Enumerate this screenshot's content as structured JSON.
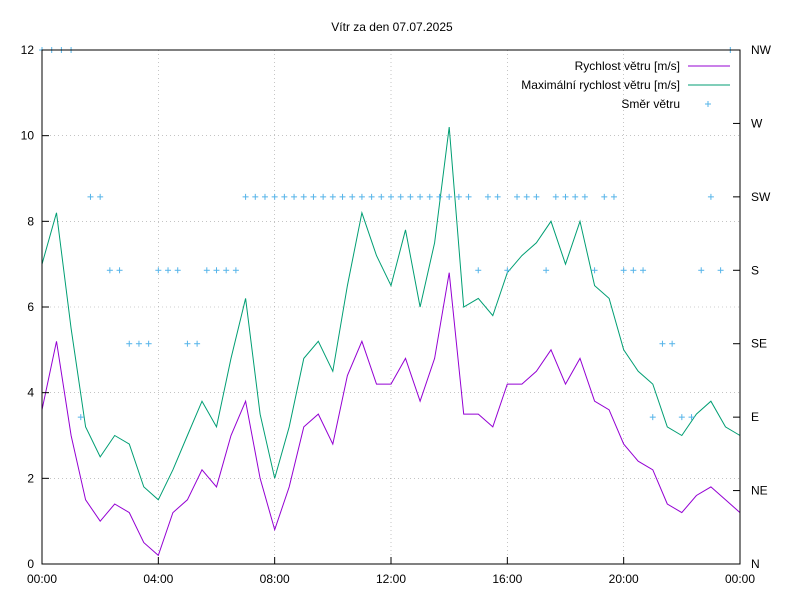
{
  "chart_data": {
    "type": "line",
    "title": "Vítr za den 07.07.2025",
    "xlabel": "",
    "ylabel": "",
    "xlim": [
      "00:00",
      "24:00"
    ],
    "ylim": [
      0,
      12
    ],
    "x_ticks": [
      "00:00",
      "04:00",
      "08:00",
      "12:00",
      "16:00",
      "20:00",
      "00:00"
    ],
    "y_ticks": [
      0,
      2,
      4,
      6,
      8,
      10,
      12
    ],
    "y2_ticks": [
      "N",
      "NE",
      "E",
      "SE",
      "S",
      "SW",
      "W",
      "NW"
    ],
    "grid": true,
    "legend_position": "top-right",
    "series": [
      {
        "name": "Rychlost větru [m/s]",
        "style": "line",
        "color": "#9400d3",
        "x": [
          "00:00",
          "00:30",
          "01:00",
          "01:30",
          "02:00",
          "02:30",
          "03:00",
          "03:30",
          "04:00",
          "04:30",
          "05:00",
          "05:30",
          "06:00",
          "06:30",
          "07:00",
          "07:30",
          "08:00",
          "08:30",
          "09:00",
          "09:30",
          "10:00",
          "10:30",
          "11:00",
          "11:30",
          "12:00",
          "12:30",
          "13:00",
          "13:30",
          "14:00",
          "14:30",
          "15:00",
          "15:30",
          "16:00",
          "16:30",
          "17:00",
          "17:30",
          "18:00",
          "18:30",
          "19:00",
          "19:30",
          "20:00",
          "20:30",
          "21:00",
          "21:30",
          "22:00",
          "22:30",
          "23:00",
          "23:30",
          "24:00"
        ],
        "values": [
          3.6,
          5.2,
          3.0,
          1.5,
          1.0,
          1.4,
          1.2,
          0.5,
          0.2,
          1.2,
          1.5,
          2.2,
          1.8,
          3.0,
          3.8,
          2.0,
          0.8,
          1.8,
          3.2,
          3.5,
          2.8,
          4.4,
          5.2,
          4.2,
          4.2,
          4.8,
          3.8,
          4.8,
          6.8,
          3.5,
          3.5,
          3.2,
          4.2,
          4.2,
          4.5,
          5.0,
          4.2,
          4.8,
          3.8,
          3.6,
          2.8,
          2.4,
          2.2,
          1.4,
          1.2,
          1.6,
          1.8,
          1.5,
          1.2
        ]
      },
      {
        "name": "Maximální rychlost větru [m/s]",
        "style": "line",
        "color": "#009e73",
        "x": [
          "00:00",
          "00:30",
          "01:00",
          "01:30",
          "02:00",
          "02:30",
          "03:00",
          "03:30",
          "04:00",
          "04:30",
          "05:00",
          "05:30",
          "06:00",
          "06:30",
          "07:00",
          "07:30",
          "08:00",
          "08:30",
          "09:00",
          "09:30",
          "10:00",
          "10:30",
          "11:00",
          "11:30",
          "12:00",
          "12:30",
          "13:00",
          "13:30",
          "14:00",
          "14:30",
          "15:00",
          "15:30",
          "16:00",
          "16:30",
          "17:00",
          "17:30",
          "18:00",
          "18:30",
          "19:00",
          "19:30",
          "20:00",
          "20:30",
          "21:00",
          "21:30",
          "22:00",
          "22:30",
          "23:00",
          "23:30",
          "24:00"
        ],
        "values": [
          7.0,
          8.2,
          5.5,
          3.2,
          2.5,
          3.0,
          2.8,
          1.8,
          1.5,
          2.2,
          3.0,
          3.8,
          3.2,
          4.8,
          6.2,
          3.5,
          2.0,
          3.2,
          4.8,
          5.2,
          4.5,
          6.5,
          8.2,
          7.2,
          6.5,
          7.8,
          6.0,
          7.5,
          10.2,
          6.0,
          6.2,
          5.8,
          6.8,
          7.2,
          7.5,
          8.0,
          7.0,
          8.0,
          6.5,
          6.2,
          5.0,
          4.5,
          4.2,
          3.2,
          3.0,
          3.5,
          3.8,
          3.2,
          3.0
        ]
      },
      {
        "name": "Směr větru",
        "style": "points",
        "color": "#56b4e9",
        "x": [
          "00:00",
          "00:20",
          "00:40",
          "01:00",
          "01:20",
          "01:40",
          "02:00",
          "02:20",
          "02:40",
          "03:00",
          "03:20",
          "03:40",
          "04:00",
          "04:20",
          "04:40",
          "05:00",
          "05:20",
          "05:40",
          "06:00",
          "06:20",
          "06:40",
          "07:00",
          "07:20",
          "07:40",
          "08:00",
          "08:20",
          "08:40",
          "09:00",
          "09:20",
          "09:40",
          "10:00",
          "10:20",
          "10:40",
          "11:00",
          "11:20",
          "11:40",
          "12:00",
          "12:20",
          "12:40",
          "13:00",
          "13:20",
          "13:40",
          "14:00",
          "14:20",
          "14:40",
          "15:00",
          "15:20",
          "15:40",
          "16:00",
          "16:20",
          "16:40",
          "17:00",
          "17:20",
          "17:40",
          "18:00",
          "18:20",
          "18:40",
          "19:00",
          "19:20",
          "19:40",
          "20:00",
          "20:20",
          "20:40",
          "21:00",
          "21:20",
          "21:40",
          "22:00",
          "22:20",
          "22:40",
          "23:00",
          "23:20",
          "23:40"
        ],
        "values": [
          "NW",
          "NW",
          "NW",
          "NW",
          "E",
          "SW",
          "SW",
          "S",
          "S",
          "SE",
          "SE",
          "SE",
          "S",
          "S",
          "S",
          "SE",
          "SE",
          "S",
          "S",
          "S",
          "S",
          "SW",
          "SW",
          "SW",
          "SW",
          "SW",
          "SW",
          "SW",
          "SW",
          "SW",
          "SW",
          "SW",
          "SW",
          "SW",
          "SW",
          "SW",
          "SW",
          "SW",
          "SW",
          "SW",
          "SW",
          "SW",
          "SW",
          "SW",
          "SW",
          "S",
          "SW",
          "SW",
          "S",
          "SW",
          "SW",
          "SW",
          "S",
          "SW",
          "SW",
          "SW",
          "SW",
          "S",
          "SW",
          "SW",
          "S",
          "S",
          "S",
          "E",
          "SE",
          "SE",
          "E",
          "E",
          "S",
          "SW",
          "S",
          "NW"
        ]
      }
    ]
  }
}
